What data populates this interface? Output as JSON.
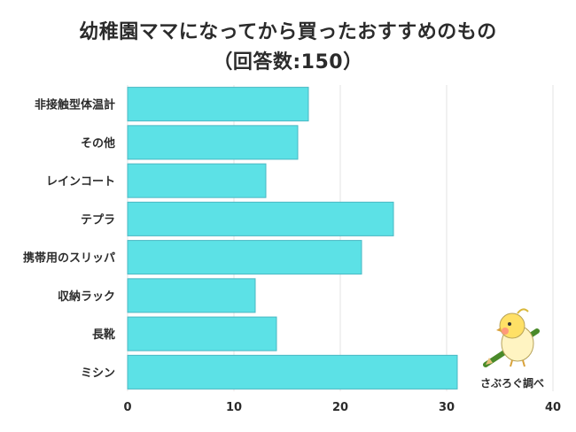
{
  "title_line1": "幼稚園ママになってから買ったおすすめのもの",
  "title_line2": "（回答数:150）",
  "watermark": "さぶろぐ調べ",
  "chart_data": {
    "type": "bar",
    "orientation": "horizontal",
    "categories": [
      "非接触型体温計",
      "その他",
      "レインコート",
      "テプラ",
      "携帯用のスリッパ",
      "収納ラック",
      "長靴",
      "ミシン"
    ],
    "values": [
      17,
      16,
      13,
      25,
      22,
      12,
      14,
      31
    ],
    "xlim": [
      0,
      40
    ],
    "xticks": [
      0,
      10,
      20,
      30,
      40
    ],
    "grid": true,
    "bar_color": "#5ce1e6"
  }
}
